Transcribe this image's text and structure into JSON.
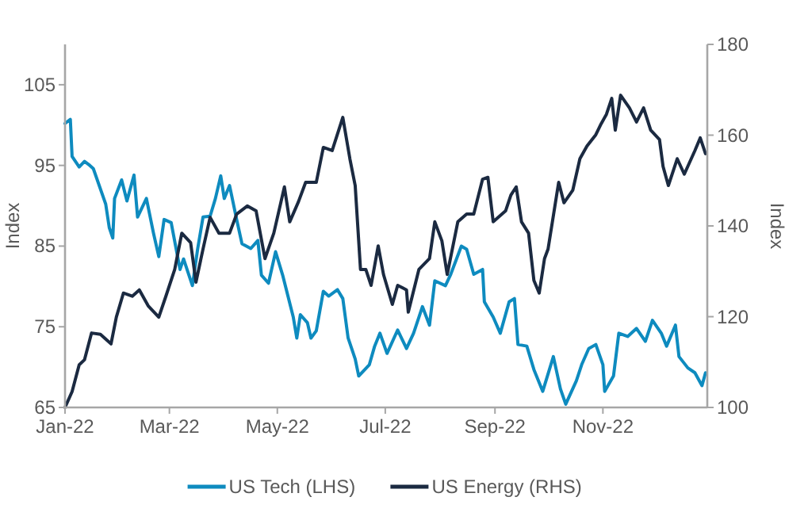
{
  "chart_data": {
    "type": "line",
    "xlim": [
      "2022-01-01",
      "2022-12-30"
    ],
    "xticks": [
      {
        "value": "2022-01-01",
        "label": "Jan-22"
      },
      {
        "value": "2022-03-01",
        "label": "Mar-22"
      },
      {
        "value": "2022-05-01",
        "label": "May-22"
      },
      {
        "value": "2022-07-01",
        "label": "Jul-22"
      },
      {
        "value": "2022-09-01",
        "label": "Sep-22"
      },
      {
        "value": "2022-11-01",
        "label": "Nov-22"
      }
    ],
    "ylim": [
      65,
      110
    ],
    "yticks": [
      65,
      75,
      85,
      95,
      105
    ],
    "y2lim": [
      100,
      180
    ],
    "y2ticks": [
      100,
      120,
      140,
      160,
      180
    ],
    "ylabel": "Index",
    "y2label": "Index",
    "legend": "bottom",
    "grid": false,
    "series": [
      {
        "name": "US Tech (LHS)",
        "color": "#0e8bbf",
        "x": [
          "2022-01-01",
          "2022-01-04",
          "2022-01-05",
          "2022-01-09",
          "2022-01-12",
          "2022-01-15",
          "2022-01-17",
          "2022-01-24",
          "2022-01-26",
          "2022-01-28",
          "2022-01-29",
          "2022-02-02",
          "2022-02-05",
          "2022-02-09",
          "2022-02-11",
          "2022-02-16",
          "2022-02-20",
          "2022-02-23",
          "2022-02-26",
          "2022-03-02",
          "2022-03-07",
          "2022-03-09",
          "2022-03-14",
          "2022-03-17",
          "2022-03-20",
          "2022-03-24",
          "2022-03-27",
          "2022-03-30",
          "2022-04-01",
          "2022-04-04",
          "2022-04-08",
          "2022-04-11",
          "2022-04-16",
          "2022-04-20",
          "2022-04-22",
          "2022-04-26",
          "2022-04-30",
          "2022-05-04",
          "2022-05-07",
          "2022-05-10",
          "2022-05-12",
          "2022-05-14",
          "2022-05-18",
          "2022-05-20",
          "2022-05-23",
          "2022-05-27",
          "2022-05-30",
          "2022-06-04",
          "2022-06-07",
          "2022-06-10",
          "2022-06-14",
          "2022-06-16",
          "2022-06-22",
          "2022-06-25",
          "2022-06-28",
          "2022-07-02",
          "2022-07-08",
          "2022-07-13",
          "2022-07-17",
          "2022-07-22",
          "2022-07-26",
          "2022-07-29",
          "2022-08-04",
          "2022-08-07",
          "2022-08-13",
          "2022-08-16",
          "2022-08-20",
          "2022-08-25",
          "2022-08-26",
          "2022-08-31",
          "2022-09-04",
          "2022-09-09",
          "2022-09-12",
          "2022-09-14",
          "2022-09-19",
          "2022-09-23",
          "2022-09-28",
          "2022-10-04",
          "2022-10-08",
          "2022-10-11",
          "2022-10-17",
          "2022-10-20",
          "2022-10-24",
          "2022-10-28",
          "2022-11-01",
          "2022-11-02",
          "2022-11-07",
          "2022-11-10",
          "2022-11-15",
          "2022-11-20",
          "2022-11-25",
          "2022-11-29",
          "2022-12-04",
          "2022-12-07",
          "2022-12-12",
          "2022-12-14",
          "2022-12-19",
          "2022-12-23",
          "2022-12-27",
          "2022-12-29"
        ],
        "values": [
          100.2,
          100.7,
          96.1,
          94.8,
          95.5,
          95,
          94.6,
          90.2,
          87.3,
          86,
          90.9,
          93.2,
          90.6,
          93.8,
          88.6,
          90.9,
          86.6,
          83.7,
          88.3,
          87.9,
          82.1,
          83.4,
          80.1,
          84.7,
          88.6,
          88.7,
          90.9,
          93.7,
          90.9,
          92.5,
          88.3,
          85.3,
          84.7,
          85.7,
          81.4,
          80.4,
          84.3,
          81.4,
          78.8,
          76.2,
          73.6,
          76.5,
          75.5,
          73.6,
          74.5,
          79.4,
          78.8,
          79.6,
          78.5,
          73.6,
          71,
          68.9,
          70.3,
          72.6,
          74.2,
          71.7,
          74.6,
          72.3,
          74.2,
          77.5,
          75.2,
          80.7,
          80.1,
          81.5,
          85,
          84.6,
          81.5,
          82.1,
          78.1,
          76.2,
          74.2,
          78.1,
          78.5,
          72.8,
          72.6,
          69.7,
          67,
          71.3,
          67.3,
          65.4,
          68.3,
          70.3,
          72.3,
          72.8,
          70.3,
          67,
          68.9,
          74.2,
          73.8,
          74.8,
          73.2,
          75.8,
          74.2,
          72.6,
          75.2,
          71.3,
          69.9,
          69.3,
          67.7,
          69.3
        ]
      },
      {
        "name": "US Energy (RHS)",
        "color": "#1b2a41",
        "axis": "y2",
        "x": [
          "2022-01-01",
          "2022-01-05",
          "2022-01-09",
          "2022-01-12",
          "2022-01-16",
          "2022-01-21",
          "2022-01-27",
          "2022-01-30",
          "2022-02-03",
          "2022-02-08",
          "2022-02-12",
          "2022-02-17",
          "2022-02-23",
          "2022-02-27",
          "2022-03-04",
          "2022-03-08",
          "2022-03-13",
          "2022-03-16",
          "2022-03-20",
          "2022-03-24",
          "2022-03-29",
          "2022-04-04",
          "2022-04-08",
          "2022-04-14",
          "2022-04-19",
          "2022-04-24",
          "2022-04-29",
          "2022-05-05",
          "2022-05-08",
          "2022-05-13",
          "2022-05-17",
          "2022-05-23",
          "2022-05-27",
          "2022-06-01",
          "2022-06-07",
          "2022-06-11",
          "2022-06-14",
          "2022-06-17",
          "2022-06-20",
          "2022-06-23",
          "2022-06-27",
          "2022-06-30",
          "2022-07-05",
          "2022-07-08",
          "2022-07-13",
          "2022-07-14",
          "2022-07-20",
          "2022-07-26",
          "2022-07-29",
          "2022-08-02",
          "2022-08-05",
          "2022-08-11",
          "2022-08-16",
          "2022-08-20",
          "2022-08-25",
          "2022-08-28",
          "2022-08-31",
          "2022-09-07",
          "2022-09-10",
          "2022-09-13",
          "2022-09-16",
          "2022-09-20",
          "2022-09-23",
          "2022-09-26",
          "2022-09-29",
          "2022-10-01",
          "2022-10-07",
          "2022-10-10",
          "2022-10-15",
          "2022-10-19",
          "2022-10-23",
          "2022-10-28",
          "2022-10-31",
          "2022-11-03",
          "2022-11-06",
          "2022-11-08",
          "2022-11-11",
          "2022-11-16",
          "2022-11-20",
          "2022-11-24",
          "2022-11-28",
          "2022-12-03",
          "2022-12-05",
          "2022-12-08",
          "2022-12-13",
          "2022-12-17",
          "2022-12-23",
          "2022-12-26",
          "2022-12-29"
        ],
        "values": [
          100,
          103.5,
          109.4,
          110.5,
          116.4,
          116.1,
          114,
          119.9,
          125.2,
          124.5,
          125.9,
          122.4,
          119.9,
          124.5,
          130.4,
          138.4,
          136.3,
          127.6,
          134.9,
          141.9,
          138.4,
          138.4,
          142.6,
          144.4,
          143.3,
          132.8,
          138.4,
          148.6,
          140.9,
          145.4,
          149.6,
          149.6,
          157.3,
          156.6,
          163.9,
          154.8,
          148.9,
          130.4,
          130.4,
          126.9,
          135.6,
          129.3,
          122.7,
          126.9,
          125.9,
          121,
          130.4,
          132.8,
          140.9,
          136.7,
          129.3,
          140.9,
          142.6,
          142.6,
          150.3,
          150.7,
          140.9,
          143.3,
          146.8,
          148.6,
          140.9,
          138.4,
          128,
          125.2,
          132.8,
          134.9,
          149.6,
          145.1,
          147.9,
          154.8,
          157.6,
          160.1,
          162.5,
          164.6,
          168.1,
          161.1,
          168.8,
          166,
          162.9,
          166,
          161.1,
          159,
          153.1,
          148.9,
          154.8,
          151.4,
          156.6,
          159.4,
          155.9
        ]
      }
    ]
  }
}
